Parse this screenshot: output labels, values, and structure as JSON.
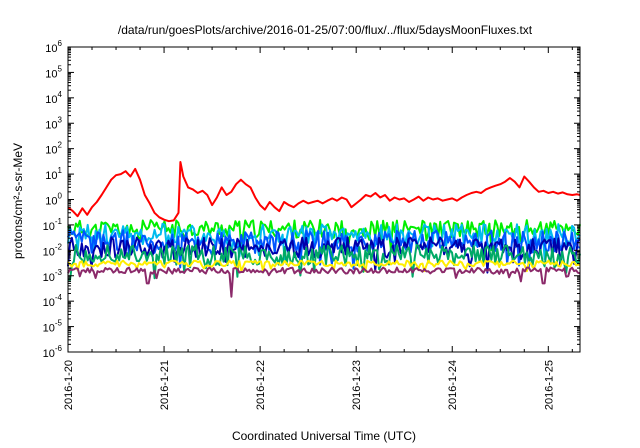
{
  "chart_data": {
    "type": "line",
    "title": "/data/run/goesPlots/archive/2016-01-25/07:00/flux/../flux/5daysMoonFluxes.txt",
    "xlabel": "Coordinated Universal Time (UTC)",
    "ylabel": "protons/cm²-s-sr-MeV",
    "yscale": "log",
    "ylim": [
      1e-06,
      1000000.0
    ],
    "xlim": [
      0,
      5.33
    ],
    "x_ticks": [
      {
        "x": 0,
        "label": "2016-1-20"
      },
      {
        "x": 1,
        "label": "2016-1-21"
      },
      {
        "x": 2,
        "label": "2016-1-22"
      },
      {
        "x": 3,
        "label": "2016-1-23"
      },
      {
        "x": 4,
        "label": "2016-1-24"
      },
      {
        "x": 5,
        "label": "2016-1-25"
      }
    ],
    "y_ticks": [
      {
        "exp": "-6"
      },
      {
        "exp": "-5"
      },
      {
        "exp": "-4"
      },
      {
        "exp": "-3"
      },
      {
        "exp": "-2"
      },
      {
        "exp": "-1"
      },
      {
        "exp": "0"
      },
      {
        "exp": "1"
      },
      {
        "exp": "2"
      },
      {
        "exp": "3"
      },
      {
        "exp": "4"
      },
      {
        "exp": "5"
      },
      {
        "exp": "6"
      }
    ],
    "grid": false,
    "series": [
      {
        "color": "#ff0000",
        "points": [
          [
            0,
            0.5
          ],
          [
            0.05,
            0.35
          ],
          [
            0.1,
            0.22
          ],
          [
            0.15,
            0.45
          ],
          [
            0.2,
            0.25
          ],
          [
            0.25,
            0.5
          ],
          [
            0.3,
            0.8
          ],
          [
            0.35,
            1.5
          ],
          [
            0.4,
            3
          ],
          [
            0.45,
            6
          ],
          [
            0.5,
            9
          ],
          [
            0.55,
            10
          ],
          [
            0.6,
            13
          ],
          [
            0.65,
            8
          ],
          [
            0.7,
            16
          ],
          [
            0.75,
            6
          ],
          [
            0.8,
            1.5
          ],
          [
            0.85,
            0.7
          ],
          [
            0.9,
            0.3
          ],
          [
            0.95,
            0.2
          ],
          [
            1.0,
            0.16
          ],
          [
            1.05,
            0.14
          ],
          [
            1.1,
            0.15
          ],
          [
            1.15,
            0.3
          ],
          [
            1.17,
            30
          ],
          [
            1.2,
            8
          ],
          [
            1.25,
            3
          ],
          [
            1.3,
            2.5
          ],
          [
            1.35,
            1.8
          ],
          [
            1.4,
            2.2
          ],
          [
            1.45,
            1.5
          ],
          [
            1.5,
            0.6
          ],
          [
            1.55,
            1.2
          ],
          [
            1.6,
            3
          ],
          [
            1.65,
            1.5
          ],
          [
            1.7,
            2
          ],
          [
            1.75,
            4
          ],
          [
            1.8,
            6
          ],
          [
            1.85,
            4
          ],
          [
            1.9,
            3
          ],
          [
            1.95,
            1.2
          ],
          [
            2.0,
            0.6
          ],
          [
            2.05,
            0.4
          ],
          [
            2.1,
            0.8
          ],
          [
            2.15,
            0.5
          ],
          [
            2.2,
            0.35
          ],
          [
            2.25,
            0.8
          ],
          [
            2.3,
            0.6
          ],
          [
            2.35,
            0.5
          ],
          [
            2.4,
            0.7
          ],
          [
            2.45,
            0.9
          ],
          [
            2.5,
            0.7
          ],
          [
            2.55,
            0.8
          ],
          [
            2.6,
            0.9
          ],
          [
            2.65,
            0.7
          ],
          [
            2.7,
            0.9
          ],
          [
            2.75,
            1.1
          ],
          [
            2.8,
            0.9
          ],
          [
            2.85,
            1.2
          ],
          [
            2.9,
            1.0
          ],
          [
            2.95,
            0.5
          ],
          [
            3.0,
            0.7
          ],
          [
            3.05,
            1.0
          ],
          [
            3.1,
            1.5
          ],
          [
            3.15,
            1.3
          ],
          [
            3.2,
            1.8
          ],
          [
            3.25,
            1.2
          ],
          [
            3.3,
            1.5
          ],
          [
            3.35,
            0.9
          ],
          [
            3.4,
            1.2
          ],
          [
            3.45,
            1.0
          ],
          [
            3.5,
            1.1
          ],
          [
            3.55,
            0.8
          ],
          [
            3.6,
            1.0
          ],
          [
            3.65,
            1.3
          ],
          [
            3.7,
            0.9
          ],
          [
            3.75,
            1.2
          ],
          [
            3.8,
            1.0
          ],
          [
            3.85,
            1.1
          ],
          [
            3.9,
            0.9
          ],
          [
            3.95,
            1.0
          ],
          [
            4.0,
            1.1
          ],
          [
            4.05,
            0.9
          ],
          [
            4.1,
            1.2
          ],
          [
            4.15,
            1.5
          ],
          [
            4.2,
            1.8
          ],
          [
            4.25,
            2.0
          ],
          [
            4.3,
            1.8
          ],
          [
            4.35,
            2.5
          ],
          [
            4.4,
            3.0
          ],
          [
            4.45,
            3.5
          ],
          [
            4.5,
            4
          ],
          [
            4.55,
            5
          ],
          [
            4.6,
            7
          ],
          [
            4.65,
            5
          ],
          [
            4.7,
            3
          ],
          [
            4.75,
            8
          ],
          [
            4.8,
            5
          ],
          [
            4.85,
            3
          ],
          [
            4.9,
            2
          ],
          [
            4.95,
            2.2
          ],
          [
            5.0,
            1.8
          ],
          [
            5.05,
            2.0
          ],
          [
            5.1,
            1.7
          ],
          [
            5.15,
            1.9
          ],
          [
            5.2,
            1.6
          ],
          [
            5.25,
            1.5
          ],
          [
            5.3,
            1.6
          ],
          [
            5.33,
            1.5
          ]
        ]
      },
      {
        "color": "#00ee00",
        "base": 0.07,
        "amp": 0.35,
        "seed": 11
      },
      {
        "color": "#00bbee",
        "base": 0.04,
        "amp": 0.45,
        "seed": 23
      },
      {
        "color": "#0055ff",
        "base": 0.022,
        "amp": 0.45,
        "seed": 37
      },
      {
        "color": "#0000aa",
        "base": 0.013,
        "amp": 0.4,
        "seed": 53
      },
      {
        "color": "#00aa66",
        "base": 0.0065,
        "amp": 0.4,
        "seed": 71
      },
      {
        "color": "#ffee00",
        "base": 0.003,
        "amp": 0.12,
        "seed": 89
      },
      {
        "color": "#8b2a6a",
        "base": 0.0016,
        "amp": 0.12,
        "seed": 97,
        "dips": [
          [
            0.83,
            0.0005
          ],
          [
            1.7,
            0.00015
          ],
          [
            4.72,
            0.0006
          ],
          [
            4.95,
            0.0005
          ]
        ]
      }
    ]
  }
}
